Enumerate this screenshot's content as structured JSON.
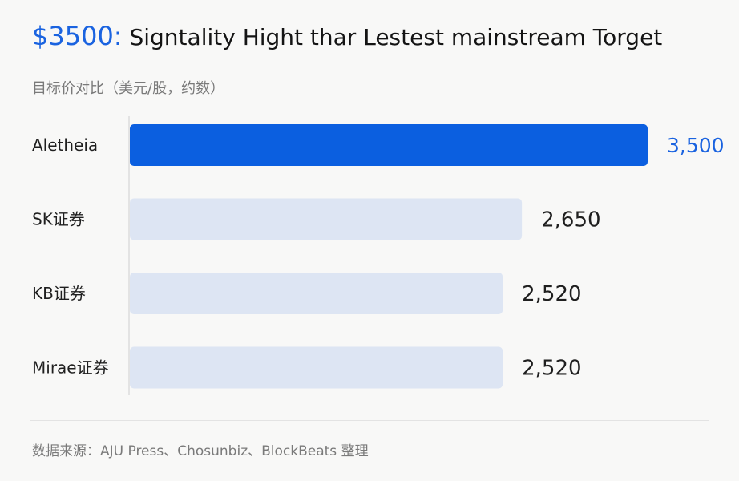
{
  "header": {
    "price": "$3500:",
    "title": " Signtality Hight thar Lestest mainstream Torget",
    "subtitle": "目标价对比（美元/股，约数）"
  },
  "footer": {
    "source": "数据来源：AJU Press、Chosunbiz、BlockBeats 整理"
  },
  "colors": {
    "highlight": "#0b5fe0",
    "highlight_label": "#1a63e0",
    "muted_bar": "#dde5f3",
    "text": "#1f1f1f"
  },
  "chart_data": {
    "type": "bar",
    "orientation": "horizontal",
    "categories": [
      "Aletheia",
      "SK证券",
      "KB证券",
      "Mirae证券"
    ],
    "values": [
      3500,
      2650,
      2520,
      2520
    ],
    "value_labels": [
      "3,500",
      "2,650",
      "2,520",
      "2,520"
    ],
    "highlight_index": 0,
    "xlim": [
      0,
      3500
    ],
    "grid": false
  }
}
